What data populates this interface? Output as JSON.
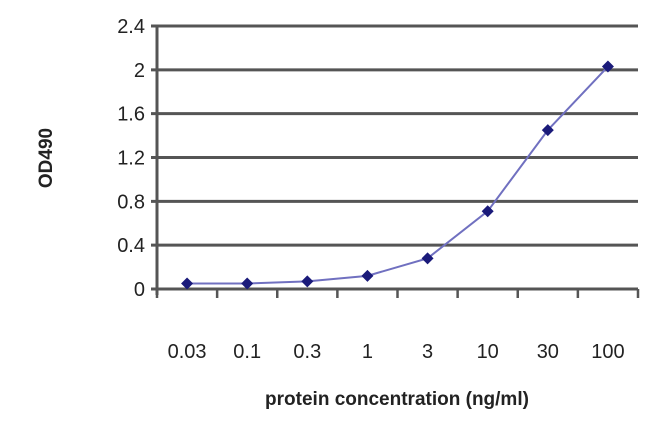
{
  "chart_data": {
    "type": "line",
    "title": "",
    "xlabel": "protein concentration (ng/ml)",
    "ylabel": "OD490",
    "categories": [
      "0.03",
      "0.1",
      "0.3",
      "1",
      "3",
      "10",
      "30",
      "100"
    ],
    "values": [
      0.05,
      0.05,
      0.07,
      0.12,
      0.28,
      0.71,
      1.45,
      2.03
    ],
    "ylim": [
      0,
      2.4
    ],
    "yticks": [
      "0",
      "0.4",
      "0.8",
      "1.2",
      "1.6",
      "2",
      "2.4"
    ],
    "grid": true,
    "legend": "none",
    "colors": {
      "series": "#1a1a7a",
      "line": "#7070c0",
      "grid": "#555555"
    }
  }
}
